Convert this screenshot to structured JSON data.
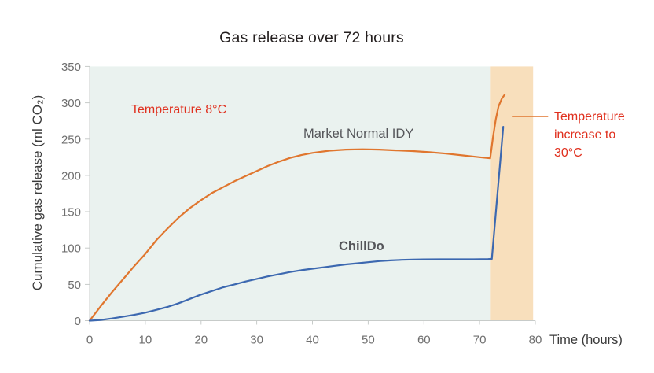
{
  "colors": {
    "background": "#ffffff",
    "cold_region": "#eaf2ef",
    "warm_region": "#f8dfbc",
    "market_line": "#e0762e",
    "chilldo_line": "#3c68b0",
    "annotation_red": "#e0301e",
    "axis": "#c7cbc9",
    "tick_label": "#6e6e6e",
    "series_label": "#55565a",
    "title_text": "#241f1f"
  },
  "chart_data": {
    "type": "line",
    "title": "Gas release over 72 hours",
    "xlabel": "Time (hours)",
    "ylabel": "Cumulative gas release (ml CO₂)",
    "xlim": [
      0,
      80
    ],
    "ylim": [
      0,
      350
    ],
    "xticks": [
      0,
      10,
      20,
      30,
      40,
      50,
      60,
      70,
      80
    ],
    "yticks": [
      0,
      50,
      100,
      150,
      200,
      250,
      300,
      350
    ],
    "grid": false,
    "legend_position": "inline-labels",
    "regions": [
      {
        "label": "Temperature 8°C",
        "x0": 0,
        "x1": 72,
        "color": "#eaf2ef"
      },
      {
        "label": "Temperature increase to 30°C",
        "x0": 72,
        "x1": 79.6,
        "color": "#f8dfbc"
      }
    ],
    "leader": {
      "x": [
        75.8,
        82.3
      ],
      "y": 281
    },
    "series": [
      {
        "name": "Market Normal IDY",
        "color": "#e0762e",
        "points": [
          [
            0,
            0
          ],
          [
            2,
            20
          ],
          [
            4,
            39
          ],
          [
            6,
            57
          ],
          [
            8,
            75
          ],
          [
            10,
            92
          ],
          [
            12,
            111
          ],
          [
            14,
            127
          ],
          [
            16,
            142
          ],
          [
            18,
            155
          ],
          [
            20,
            166
          ],
          [
            22,
            176
          ],
          [
            24,
            184
          ],
          [
            26,
            192
          ],
          [
            28,
            199
          ],
          [
            30,
            206
          ],
          [
            32,
            213
          ],
          [
            34,
            219
          ],
          [
            36,
            224
          ],
          [
            38,
            228
          ],
          [
            40,
            231
          ],
          [
            43,
            234
          ],
          [
            46,
            235.5
          ],
          [
            49,
            236
          ],
          [
            52,
            235.5
          ],
          [
            55,
            234.5
          ],
          [
            58,
            233.5
          ],
          [
            61,
            232
          ],
          [
            64,
            230
          ],
          [
            67,
            227.5
          ],
          [
            70,
            225
          ],
          [
            71.9,
            223.5
          ],
          [
            72.4,
            252
          ],
          [
            72.9,
            277
          ],
          [
            73.4,
            295
          ],
          [
            74.0,
            306
          ],
          [
            74.5,
            311
          ]
        ]
      },
      {
        "name": "ChillDo",
        "color": "#3c68b0",
        "points": [
          [
            0,
            0
          ],
          [
            2,
            1
          ],
          [
            4,
            3
          ],
          [
            6,
            5.5
          ],
          [
            8,
            8
          ],
          [
            10,
            11
          ],
          [
            12,
            15
          ],
          [
            14,
            19
          ],
          [
            16,
            24
          ],
          [
            18,
            30
          ],
          [
            20,
            36
          ],
          [
            22,
            41
          ],
          [
            24,
            46
          ],
          [
            26,
            50
          ],
          [
            28,
            54
          ],
          [
            30,
            57.5
          ],
          [
            32,
            61
          ],
          [
            34,
            64
          ],
          [
            36,
            67
          ],
          [
            38,
            69.5
          ],
          [
            40,
            71.5
          ],
          [
            42,
            73.5
          ],
          [
            44,
            75.5
          ],
          [
            46,
            77.5
          ],
          [
            48,
            79
          ],
          [
            50,
            80.5
          ],
          [
            52,
            82
          ],
          [
            54,
            83
          ],
          [
            56,
            83.8
          ],
          [
            58,
            84.2
          ],
          [
            60,
            84.4
          ],
          [
            63,
            84.5
          ],
          [
            66,
            84.5
          ],
          [
            69,
            84.5
          ],
          [
            71.5,
            84.8
          ],
          [
            72.2,
            85
          ],
          [
            74.25,
            267
          ]
        ]
      }
    ]
  }
}
